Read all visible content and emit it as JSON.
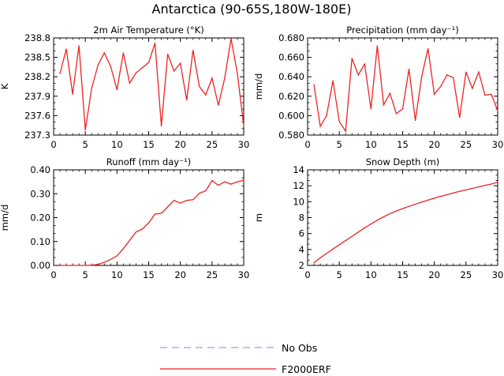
{
  "title": "Antarctica (90-65S,180W-180E)",
  "legend": [
    {
      "label": "No Obs",
      "color": "#9a9af0",
      "dash": true
    },
    {
      "label": "F2000ERF",
      "color": "#ee2222",
      "dash": false
    }
  ],
  "chart_data": [
    {
      "type": "line",
      "title": "2m Air Temperature (°K)",
      "xlabel": "",
      "ylabel": "K",
      "xlim": [
        0,
        30
      ],
      "ylim": [
        237.3,
        238.8
      ],
      "xticks": [
        0,
        5,
        10,
        15,
        20,
        25,
        30
      ],
      "yticks": [
        237.3,
        237.6,
        237.9,
        238.2,
        238.5,
        238.8
      ],
      "ytick_labels": [
        "237.3",
        "237.6",
        "237.9",
        "238.2",
        "238.5",
        "238.8"
      ],
      "series": [
        {
          "name": "F2000ERF",
          "color": "#ee2222",
          "x": [
            1,
            2,
            3,
            4,
            5,
            6,
            7,
            8,
            9,
            10,
            11,
            12,
            13,
            14,
            15,
            16,
            17,
            18,
            19,
            20,
            21,
            22,
            23,
            24,
            25,
            26,
            27,
            28,
            29,
            30
          ],
          "values": [
            238.25,
            238.63,
            237.93,
            238.68,
            237.38,
            238.02,
            238.38,
            238.57,
            238.36,
            238.0,
            238.57,
            238.1,
            238.26,
            238.34,
            238.42,
            238.72,
            237.44,
            238.55,
            238.29,
            238.41,
            237.84,
            238.61,
            238.05,
            237.92,
            238.18,
            237.76,
            238.18,
            238.79,
            238.25,
            237.44
          ]
        }
      ]
    },
    {
      "type": "line",
      "title": "Precipitation (mm day⁻¹)",
      "xlabel": "",
      "ylabel": "mm/d",
      "xlim": [
        0,
        30
      ],
      "ylim": [
        0.58,
        0.68
      ],
      "xticks": [
        0,
        5,
        10,
        15,
        20,
        25,
        30
      ],
      "yticks": [
        0.58,
        0.6,
        0.62,
        0.64,
        0.66,
        0.68
      ],
      "ytick_labels": [
        "0.580",
        "0.600",
        "0.620",
        "0.640",
        "0.660",
        "0.680"
      ],
      "series": [
        {
          "name": "F2000ERF",
          "color": "#ee2222",
          "x": [
            1,
            2,
            3,
            4,
            5,
            6,
            7,
            8,
            9,
            10,
            11,
            12,
            13,
            14,
            15,
            16,
            17,
            18,
            19,
            20,
            21,
            22,
            23,
            24,
            25,
            26,
            27,
            28,
            29,
            30
          ],
          "values": [
            0.632,
            0.589,
            0.6,
            0.636,
            0.594,
            0.584,
            0.659,
            0.642,
            0.653,
            0.607,
            0.672,
            0.611,
            0.623,
            0.602,
            0.607,
            0.648,
            0.595,
            0.64,
            0.669,
            0.622,
            0.63,
            0.642,
            0.639,
            0.598,
            0.645,
            0.628,
            0.645,
            0.621,
            0.622,
            0.605
          ]
        }
      ]
    },
    {
      "type": "line",
      "title": "Runoff (mm day⁻¹)",
      "xlabel": "",
      "ylabel": "mm/d",
      "xlim": [
        0,
        30
      ],
      "ylim": [
        0,
        0.4
      ],
      "xticks": [
        0,
        5,
        10,
        15,
        20,
        25,
        30
      ],
      "yticks": [
        0,
        0.1,
        0.2,
        0.3,
        0.4
      ],
      "ytick_labels": [
        "0.00",
        "0.10",
        "0.20",
        "0.30",
        "0.40"
      ],
      "series": [
        {
          "name": "F2000ERF",
          "color": "#ee2222",
          "x": [
            1,
            2,
            3,
            4,
            5,
            6,
            7,
            8,
            9,
            10,
            11,
            12,
            13,
            14,
            15,
            16,
            17,
            18,
            19,
            20,
            21,
            22,
            23,
            24,
            25,
            26,
            27,
            28,
            29,
            30
          ],
          "values": [
            0,
            0,
            0,
            0,
            0,
            0.001,
            0.004,
            0.013,
            0.025,
            0.04,
            0.07,
            0.105,
            0.14,
            0.152,
            0.178,
            0.215,
            0.218,
            0.245,
            0.272,
            0.261,
            0.272,
            0.275,
            0.302,
            0.312,
            0.355,
            0.335,
            0.35,
            0.34,
            0.35,
            0.356
          ]
        }
      ]
    },
    {
      "type": "line",
      "title": "Snow Depth (m)",
      "xlabel": "",
      "ylabel": "m",
      "xlim": [
        0,
        30
      ],
      "ylim": [
        2,
        14
      ],
      "xticks": [
        0,
        5,
        10,
        15,
        20,
        25,
        30
      ],
      "yticks": [
        2,
        4,
        6,
        8,
        10,
        12,
        14
      ],
      "ytick_labels": [
        "2",
        "4",
        "6",
        "8",
        "10",
        "12",
        "14"
      ],
      "series": [
        {
          "name": "F2000ERF",
          "color": "#ee2222",
          "x": [
            1,
            2,
            3,
            4,
            5,
            6,
            7,
            8,
            9,
            10,
            11,
            12,
            13,
            14,
            15,
            16,
            17,
            18,
            19,
            20,
            21,
            22,
            23,
            24,
            25,
            26,
            27,
            28,
            29,
            30
          ],
          "values": [
            2.35,
            2.95,
            3.5,
            4.05,
            4.6,
            5.12,
            5.65,
            6.18,
            6.72,
            7.2,
            7.68,
            8.1,
            8.5,
            8.83,
            9.13,
            9.42,
            9.68,
            9.95,
            10.2,
            10.44,
            10.66,
            10.88,
            11.1,
            11.3,
            11.48,
            11.67,
            11.85,
            12.05,
            12.22,
            12.45
          ]
        }
      ]
    }
  ]
}
